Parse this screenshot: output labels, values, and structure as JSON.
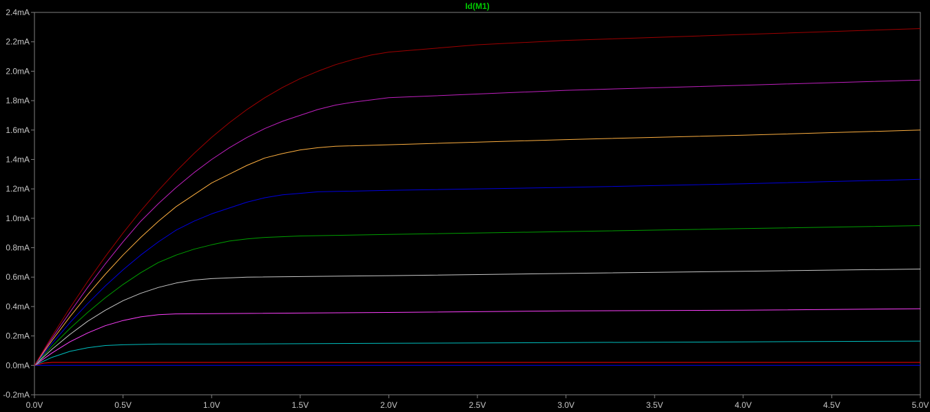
{
  "chart_data": {
    "type": "line",
    "title": "Id(M1)",
    "title_color": "#00cc00",
    "xlabel": "",
    "ylabel": "",
    "xlim": [
      0,
      5
    ],
    "ylim": [
      -0.2,
      2.4
    ],
    "x_unit": "V",
    "y_unit": "mA",
    "x_ticks": [
      "0.0V",
      "0.5V",
      "1.0V",
      "1.5V",
      "2.0V",
      "2.5V",
      "3.0V",
      "3.5V",
      "4.0V",
      "4.5V",
      "5.0V"
    ],
    "y_ticks": [
      "-0.2mA",
      "0.0mA",
      "0.2mA",
      "0.4mA",
      "0.6mA",
      "0.8mA",
      "1.0mA",
      "1.2mA",
      "1.4mA",
      "1.6mA",
      "1.8mA",
      "2.0mA",
      "2.2mA",
      "2.4mA"
    ],
    "x_tick_values": [
      0,
      0.5,
      1,
      1.5,
      2,
      2.5,
      3,
      3.5,
      4,
      4.5,
      5
    ],
    "y_tick_values": [
      -0.2,
      0,
      0.2,
      0.4,
      0.6,
      0.8,
      1.0,
      1.2,
      1.4,
      1.6,
      1.8,
      2.0,
      2.2,
      2.4
    ],
    "grid": false,
    "background": "#000000",
    "axis_color": "#808080",
    "series": [
      {
        "color": "#0000ff",
        "x": [
          0,
          1,
          2,
          3,
          4,
          5
        ],
        "y": [
          0,
          0,
          0,
          0,
          0,
          0
        ]
      },
      {
        "color": "#ff0000",
        "x": [
          0,
          0.05,
          0.1,
          1,
          2,
          3,
          4,
          5
        ],
        "y": [
          0,
          0.015,
          0.02,
          0.02,
          0.02,
          0.02,
          0.02,
          0.02
        ]
      },
      {
        "color": "#00c0c0",
        "x": [
          0,
          0.1,
          0.2,
          0.3,
          0.4,
          0.5,
          0.7,
          1,
          2,
          3,
          4,
          5
        ],
        "y": [
          0,
          0.055,
          0.095,
          0.12,
          0.135,
          0.14,
          0.145,
          0.145,
          0.15,
          0.155,
          0.16,
          0.165
        ]
      },
      {
        "color": "#ff40ff",
        "x": [
          0,
          0.1,
          0.2,
          0.3,
          0.4,
          0.5,
          0.6,
          0.7,
          0.8,
          1,
          2,
          3,
          4,
          5
        ],
        "y": [
          0,
          0.085,
          0.16,
          0.22,
          0.27,
          0.305,
          0.33,
          0.345,
          0.35,
          0.352,
          0.36,
          0.37,
          0.375,
          0.385
        ]
      },
      {
        "color": "#c8c8c8",
        "x": [
          0,
          0.1,
          0.2,
          0.3,
          0.4,
          0.5,
          0.6,
          0.7,
          0.8,
          0.9,
          1,
          1.2,
          2,
          3,
          4,
          5
        ],
        "y": [
          0,
          0.11,
          0.21,
          0.3,
          0.375,
          0.44,
          0.49,
          0.53,
          0.56,
          0.58,
          0.59,
          0.6,
          0.61,
          0.625,
          0.64,
          0.655
        ]
      },
      {
        "color": "#00a000",
        "x": [
          0,
          0.1,
          0.2,
          0.3,
          0.4,
          0.5,
          0.6,
          0.7,
          0.8,
          0.9,
          1,
          1.1,
          1.2,
          1.3,
          1.5,
          2,
          3,
          4,
          5
        ],
        "y": [
          0,
          0.13,
          0.25,
          0.36,
          0.46,
          0.55,
          0.63,
          0.7,
          0.75,
          0.79,
          0.82,
          0.845,
          0.86,
          0.87,
          0.88,
          0.89,
          0.91,
          0.93,
          0.95
        ]
      },
      {
        "color": "#0000e0",
        "x": [
          0,
          0.1,
          0.2,
          0.3,
          0.4,
          0.5,
          0.6,
          0.7,
          0.8,
          0.9,
          1,
          1.1,
          1.2,
          1.3,
          1.4,
          1.5,
          1.6,
          2,
          3,
          4,
          5
        ],
        "y": [
          0,
          0.15,
          0.29,
          0.42,
          0.54,
          0.65,
          0.75,
          0.84,
          0.92,
          0.98,
          1.03,
          1.07,
          1.11,
          1.14,
          1.16,
          1.17,
          1.18,
          1.19,
          1.21,
          1.235,
          1.265
        ]
      },
      {
        "color": "#ffb040",
        "x": [
          0,
          0.1,
          0.2,
          0.3,
          0.4,
          0.5,
          0.6,
          0.7,
          0.8,
          0.9,
          1,
          1.1,
          1.2,
          1.3,
          1.4,
          1.5,
          1.6,
          1.7,
          2,
          3,
          4,
          5
        ],
        "y": [
          0,
          0.17,
          0.33,
          0.48,
          0.62,
          0.75,
          0.87,
          0.98,
          1.08,
          1.16,
          1.24,
          1.3,
          1.36,
          1.41,
          1.44,
          1.465,
          1.48,
          1.49,
          1.5,
          1.535,
          1.565,
          1.6
        ]
      },
      {
        "color": "#c020c0",
        "x": [
          0,
          0.1,
          0.2,
          0.3,
          0.4,
          0.5,
          0.6,
          0.7,
          0.8,
          0.9,
          1,
          1.1,
          1.2,
          1.3,
          1.4,
          1.5,
          1.6,
          1.7,
          1.8,
          2,
          3,
          4,
          5
        ],
        "y": [
          0,
          0.185,
          0.36,
          0.53,
          0.69,
          0.84,
          0.98,
          1.1,
          1.21,
          1.31,
          1.4,
          1.48,
          1.55,
          1.61,
          1.66,
          1.7,
          1.74,
          1.77,
          1.79,
          1.82,
          1.87,
          1.905,
          1.94
        ]
      },
      {
        "color": "#a00000",
        "x": [
          0,
          0.1,
          0.2,
          0.3,
          0.4,
          0.5,
          0.6,
          0.7,
          0.8,
          0.9,
          1,
          1.1,
          1.2,
          1.3,
          1.4,
          1.5,
          1.6,
          1.7,
          1.8,
          1.9,
          2,
          2.5,
          3,
          4,
          5
        ],
        "y": [
          0,
          0.2,
          0.39,
          0.57,
          0.74,
          0.9,
          1.05,
          1.19,
          1.32,
          1.44,
          1.55,
          1.65,
          1.74,
          1.82,
          1.89,
          1.95,
          2.0,
          2.045,
          2.08,
          2.11,
          2.13,
          2.18,
          2.21,
          2.25,
          2.29
        ]
      }
    ]
  }
}
